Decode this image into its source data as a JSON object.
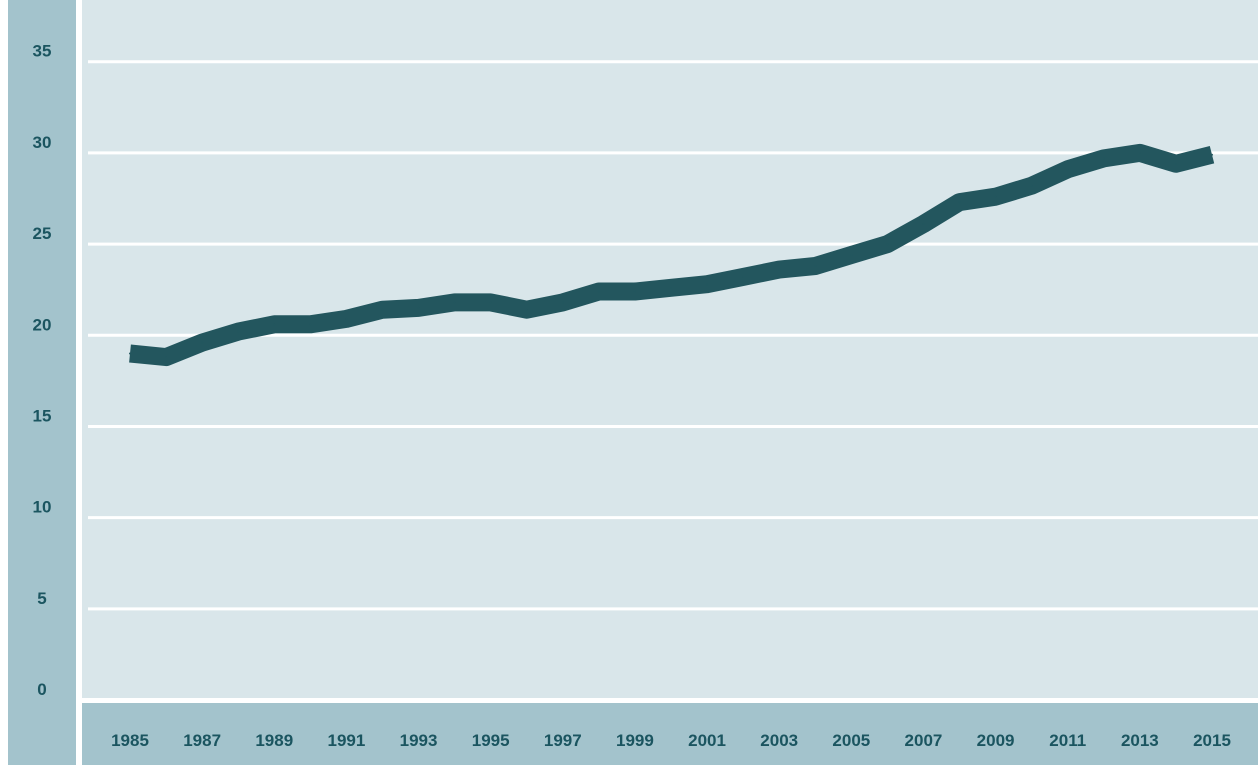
{
  "chart_data": {
    "type": "line",
    "title": "",
    "xlabel": "",
    "ylabel": "",
    "x": [
      1985,
      1986,
      1987,
      1988,
      1989,
      1990,
      1991,
      1992,
      1993,
      1994,
      1995,
      1996,
      1997,
      1998,
      1999,
      2000,
      2001,
      2002,
      2003,
      2004,
      2005,
      2006,
      2007,
      2008,
      2009,
      2010,
      2011,
      2012,
      2013,
      2014,
      2015
    ],
    "series": [
      {
        "values": [
          19.0,
          18.8,
          19.6,
          20.2,
          20.6,
          20.6,
          20.9,
          21.4,
          21.5,
          21.8,
          21.8,
          21.4,
          21.8,
          22.4,
          22.4,
          22.6,
          22.8,
          23.2,
          23.6,
          23.8,
          24.4,
          25.0,
          26.1,
          27.3,
          27.6,
          28.2,
          29.1,
          29.7,
          30.0,
          29.4,
          29.9
        ]
      }
    ],
    "x_tick_labels": [
      "1985",
      "1987",
      "1989",
      "1991",
      "1993",
      "1995",
      "1997",
      "1999",
      "2001",
      "2003",
      "2005",
      "2007",
      "2009",
      "2011",
      "2013",
      "2015"
    ],
    "y_tick_labels": [
      "0",
      "5",
      "10",
      "15",
      "20",
      "25",
      "30",
      "35"
    ],
    "ylim": [
      0,
      38
    ],
    "xlim": [
      1984.7,
      1985.3
    ],
    "grid": true,
    "colors": {
      "plot_background": "#d9e6ea",
      "axis_bands": "#a3c3cc",
      "line": "#23565e",
      "tick_text": "#1b5560",
      "grid": "#ffffff"
    }
  }
}
